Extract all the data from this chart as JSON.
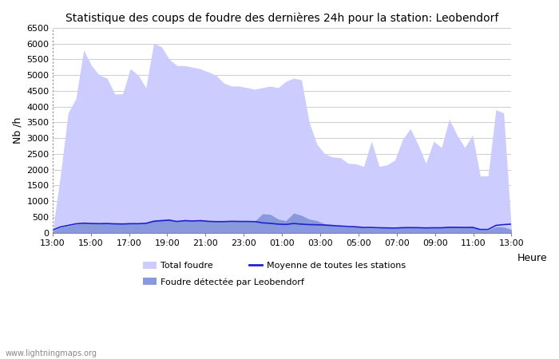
{
  "title": "Statistique des coups de foudre des dernières 24h pour la station: Leobendorf",
  "xlabel": "Heure",
  "ylabel": "Nb /h",
  "ylim": [
    0,
    6500
  ],
  "yticks": [
    0,
    500,
    1000,
    1500,
    2000,
    2500,
    3000,
    3500,
    4000,
    4500,
    5000,
    5500,
    6000,
    6500
  ],
  "xtick_labels": [
    "13:00",
    "15:00",
    "17:00",
    "19:00",
    "21:00",
    "23:00",
    "01:00",
    "03:00",
    "05:00",
    "07:00",
    "09:00",
    "11:00",
    "13:00"
  ],
  "bg_color": "#ffffff",
  "plot_bg_color": "#ffffff",
  "grid_color": "#cccccc",
  "total_foudre_color": "#ccccff",
  "local_foudre_color": "#8899dd",
  "moyenne_color": "#2222cc",
  "watermark": "www.lightningmaps.org",
  "total_foudre": [
    50,
    1800,
    3800,
    4250,
    5800,
    5300,
    5000,
    4900,
    4400,
    4400,
    5200,
    5000,
    4600,
    6000,
    5900,
    5500,
    5300,
    5300,
    5250,
    5200,
    5100,
    5000,
    4750,
    4650,
    4650,
    4600,
    4550,
    4600,
    4650,
    4600,
    4800,
    4900,
    4850,
    3500,
    2800,
    2500,
    2400,
    2380,
    2200,
    2180,
    2100,
    2900,
    2100,
    2150,
    2300,
    2950,
    3300,
    2800,
    2200,
    2900,
    2700,
    3600,
    3100,
    2700,
    3100,
    1800,
    1800,
    3900,
    3800,
    100
  ],
  "local_foudre": [
    50,
    160,
    210,
    260,
    300,
    280,
    300,
    300,
    280,
    280,
    290,
    300,
    310,
    400,
    420,
    440,
    350,
    420,
    380,
    420,
    380,
    350,
    360,
    370,
    380,
    370,
    360,
    600,
    580,
    430,
    380,
    620,
    550,
    430,
    380,
    280,
    260,
    200,
    180,
    200,
    150,
    150,
    145,
    150,
    135,
    175,
    175,
    175,
    155,
    160,
    160,
    195,
    190,
    180,
    190,
    80,
    80,
    190,
    180,
    100
  ],
  "moyenne": [
    80,
    180,
    230,
    280,
    300,
    290,
    285,
    290,
    280,
    275,
    285,
    285,
    295,
    360,
    380,
    395,
    355,
    380,
    370,
    380,
    360,
    350,
    350,
    360,
    355,
    355,
    350,
    310,
    295,
    270,
    260,
    290,
    270,
    255,
    250,
    240,
    225,
    210,
    195,
    185,
    165,
    165,
    155,
    150,
    145,
    158,
    160,
    158,
    150,
    155,
    155,
    170,
    168,
    165,
    168,
    100,
    100,
    230,
    255,
    270
  ],
  "n_xticks": 13
}
